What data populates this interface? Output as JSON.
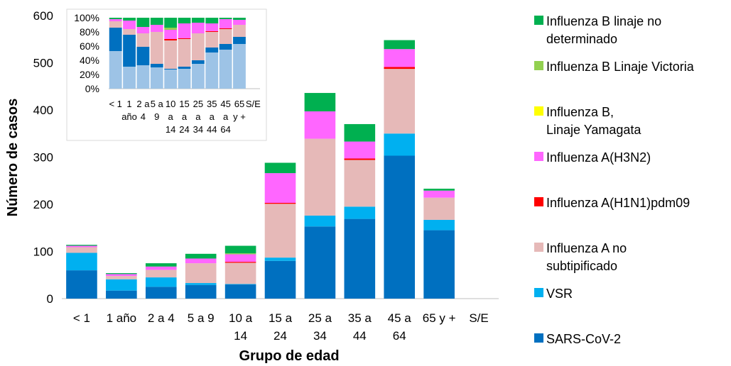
{
  "chart_data": [
    {
      "type": "bar",
      "stacked": true,
      "xlabel": "Grupo de edad",
      "ylabel": "Número de casos",
      "ylim": [
        0,
        600
      ],
      "yticks": [
        "0",
        "100",
        "200",
        "300",
        "400",
        "500",
        "600"
      ],
      "categories": [
        "< 1",
        "1 año",
        "2 a 4",
        "5 a 9",
        "10 a\n14",
        "15 a\n24",
        "25 a\n34",
        "35 a\n44",
        "45 a\n64",
        "65 y +",
        "S/E"
      ],
      "grid": false,
      "legend_position": "right",
      "series": [
        {
          "name": "SARS-CoV-2",
          "color": "#0070c0",
          "values": [
            60,
            17,
            25,
            29,
            30,
            80,
            153,
            169,
            303,
            145,
            0
          ]
        },
        {
          "name": "VSR",
          "color": "#00b0f0",
          "values": [
            37,
            24,
            20,
            4,
            1,
            7,
            23,
            26,
            47,
            22,
            0
          ]
        },
        {
          "name": "Influenza A no\nsubtipificado",
          "color": "#e6b9b8",
          "values": [
            12,
            7,
            16,
            42,
            45,
            114,
            163,
            99,
            137,
            47,
            0
          ]
        },
        {
          "name": "Influenza A(H1N1)pdm09",
          "color": "#ff0000",
          "values": [
            0,
            0,
            0,
            0,
            2,
            2,
            0,
            3,
            4,
            0,
            0
          ]
        },
        {
          "name": "Influenza A(H3N2)",
          "color": "#ff66ff",
          "values": [
            3,
            4,
            7,
            10,
            16,
            63,
            58,
            36,
            38,
            15,
            0
          ]
        },
        {
          "name": "Influenza B,\n   Linaje Yamagata",
          "color": "#ffff00",
          "values": [
            0,
            0,
            0,
            0,
            0,
            0,
            0,
            0,
            0,
            0,
            0
          ]
        },
        {
          "name": "Influenza B Linaje Victoria",
          "color": "#92d050",
          "values": [
            0,
            0,
            0,
            0,
            2,
            0,
            0,
            0,
            0,
            0,
            0
          ]
        },
        {
          "name": "Influenza B linaje no\ndeterminado",
          "color": "#00b050",
          "values": [
            2,
            2,
            7,
            10,
            16,
            22,
            39,
            37,
            19,
            4,
            0
          ]
        }
      ]
    },
    {
      "type": "bar",
      "stacked": true,
      "percent": true,
      "ylim": [
        0,
        100
      ],
      "yticks": [
        "0%",
        "20%",
        "40%",
        "60%",
        "80%",
        "100%"
      ],
      "categories": [
        "< 1",
        "1\naño",
        "2 a\n4",
        "5 a\n9",
        "10\na\n14",
        "15\na\n24",
        "25\na\n34",
        "35\na\n44",
        "45\na\n64",
        "65\ny +",
        "S/E"
      ],
      "series": [
        {
          "name": "SARS-CoV-2 (light)",
          "color": "#9dc3e6",
          "values": [
            53,
            31,
            33,
            30,
            27,
            28,
            35,
            51,
            55,
            63,
            0
          ]
        },
        {
          "name": "SARS-CoV-2 (dark)",
          "color": "#0070c0",
          "values": [
            33,
            45,
            26,
            5,
            1,
            3,
            5,
            7,
            8,
            10,
            0
          ]
        },
        {
          "name": "Influenza A no subtipificado",
          "color": "#e6b9b8",
          "values": [
            9,
            8,
            19,
            45,
            40,
            39,
            38,
            22,
            21,
            17,
            0
          ]
        },
        {
          "name": "Influenza A(H1N1)pdm09",
          "color": "#ff0000",
          "values": [
            0,
            0,
            0,
            0,
            2,
            1,
            0,
            1,
            1,
            0,
            0
          ]
        },
        {
          "name": "Influenza A(H3N2)",
          "color": "#ff66ff",
          "values": [
            3,
            12,
            9,
            10,
            13,
            21,
            15,
            11,
            13,
            7,
            0
          ]
        },
        {
          "name": "Influenza B Linaje Victoria",
          "color": "#92d050",
          "values": [
            0,
            0,
            0,
            0,
            3,
            0,
            0,
            0,
            0,
            0,
            0
          ]
        },
        {
          "name": "Influenza B linaje no determinado",
          "color": "#00b050",
          "values": [
            2,
            4,
            13,
            10,
            14,
            8,
            7,
            8,
            2,
            3,
            0
          ]
        }
      ]
    }
  ]
}
